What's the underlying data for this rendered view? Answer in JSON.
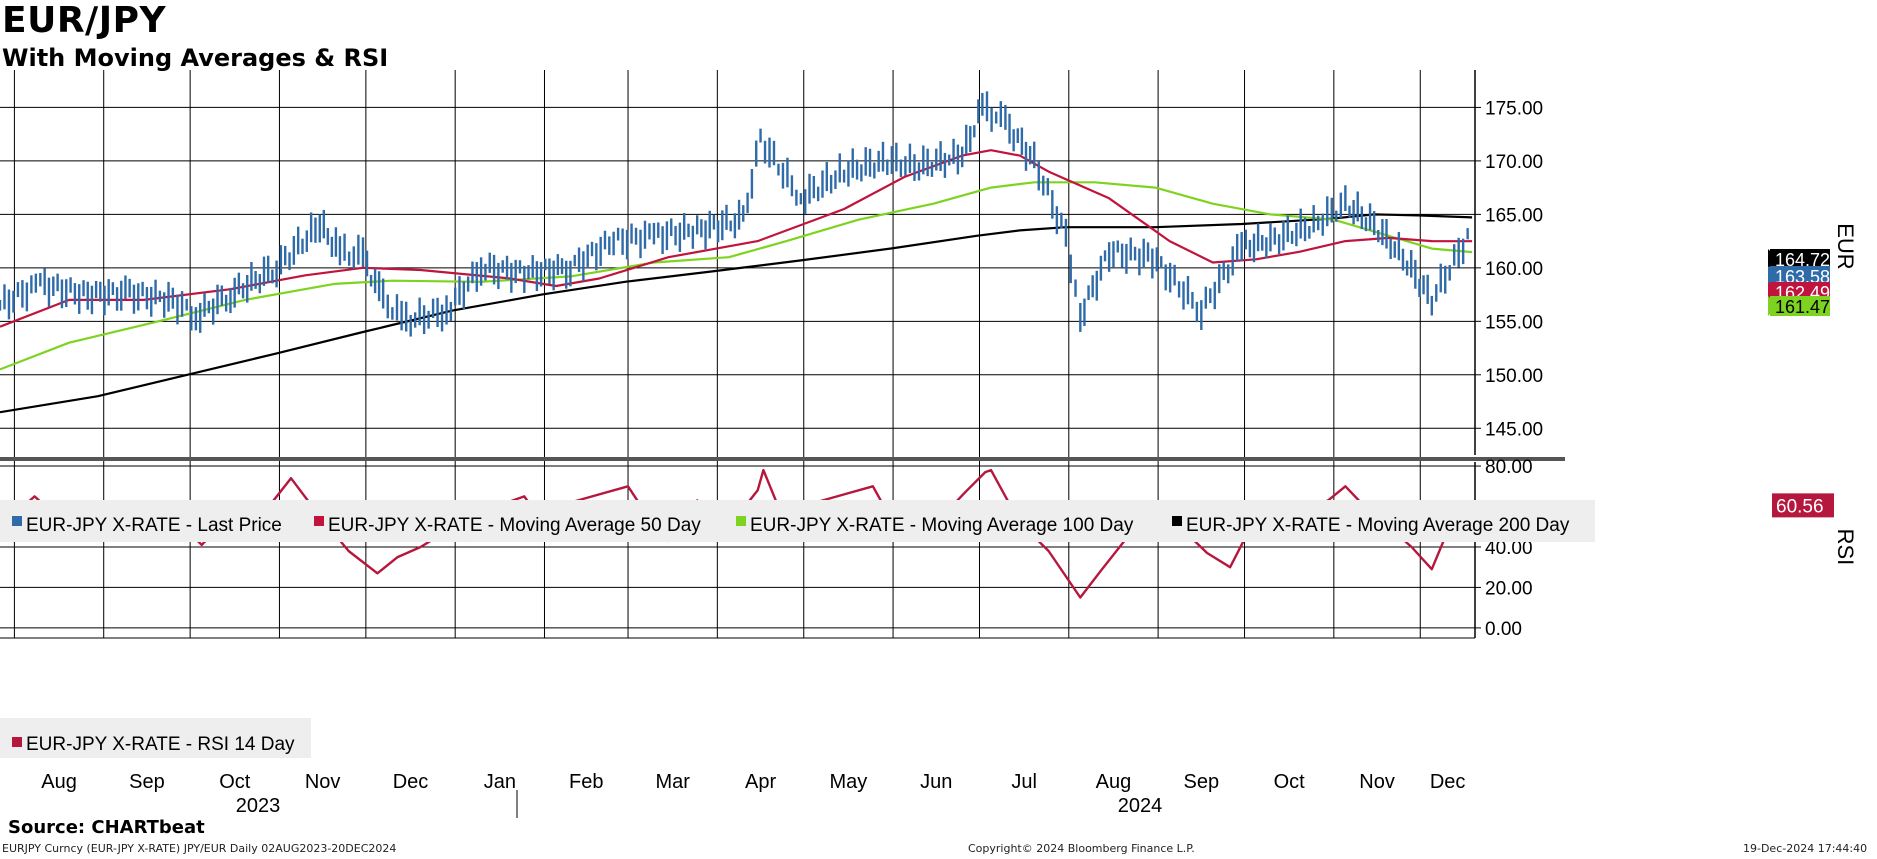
{
  "header": {
    "title": "EUR/JPY",
    "subtitle": "With Moving Averages & RSI"
  },
  "footer": {
    "source": "Source: CHARTbeat",
    "ticker_info": "EURJPY Curncy (EUR-JPY X-RATE) JPY/EUR  Daily 02AUG2023-20DEC2024",
    "copyright": "Copyright© 2024 Bloomberg Finance L.P.",
    "timestamp": "19-Dec-2024 17:44:40"
  },
  "colors": {
    "price": "#2f6ba8",
    "ma50": "#c0143c",
    "ma100": "#7ed321",
    "ma200": "#000000",
    "rsi": "#b5173d",
    "grid": "#000000"
  },
  "chart_data": [
    {
      "type": "line",
      "name": "price-panel",
      "ylabel": "EUR",
      "yticks": [
        "145.00",
        "150.00",
        "155.00",
        "160.00",
        "165.00",
        "170.00",
        "175.00"
      ],
      "ylim": [
        142.5,
        178.5
      ],
      "x_range": [
        "2023-07-27",
        "2024-12-20"
      ],
      "month_labels": [
        "Aug",
        "Sep",
        "Oct",
        "Nov",
        "Dec",
        "Jan",
        "Feb",
        "Mar",
        "Apr",
        "May",
        "Jun",
        "Jul",
        "Aug",
        "Sep",
        "Oct",
        "Nov",
        "Dec"
      ],
      "month_dates": [
        "2023-08-01",
        "2023-09-01",
        "2023-10-01",
        "2023-11-01",
        "2023-12-01",
        "2024-01-01",
        "2024-02-01",
        "2024-03-01",
        "2024-04-01",
        "2024-05-01",
        "2024-06-01",
        "2024-07-01",
        "2024-08-01",
        "2024-09-01",
        "2024-10-01",
        "2024-11-01",
        "2024-12-01"
      ],
      "year_labels": [
        "2023",
        "2024"
      ],
      "legend": [
        "EUR-JPY X-RATE - Last Price",
        "EUR-JPY X-RATE - Moving Average 50 Day",
        "EUR-JPY X-RATE - Moving Average 100 Day",
        "EUR-JPY X-RATE - Moving Average 200 Day"
      ],
      "last_value_tags": [
        "164.72",
        "163.58",
        "162.49",
        "161.47"
      ],
      "series": [
        {
          "name": "EUR-JPY X-RATE - Last Price",
          "x": [
            "2023-07-27",
            "2023-08-10",
            "2023-08-25",
            "2023-09-10",
            "2023-09-25",
            "2023-10-03",
            "2023-10-15",
            "2023-10-31",
            "2023-11-15",
            "2023-11-22",
            "2023-11-30",
            "2023-12-07",
            "2023-12-15",
            "2023-12-29",
            "2024-01-10",
            "2024-01-25",
            "2024-02-10",
            "2024-02-25",
            "2024-03-10",
            "2024-03-25",
            "2024-04-10",
            "2024-04-16",
            "2024-04-30",
            "2024-05-15",
            "2024-05-30",
            "2024-06-10",
            "2024-06-25",
            "2024-07-02",
            "2024-07-10",
            "2024-07-20",
            "2024-07-31",
            "2024-08-05",
            "2024-08-15",
            "2024-08-30",
            "2024-09-16",
            "2024-09-30",
            "2024-10-10",
            "2024-10-25",
            "2024-11-05",
            "2024-11-15",
            "2024-11-25",
            "2024-12-05",
            "2024-12-19"
          ],
          "values": [
            156.5,
            158.5,
            157.5,
            157.6,
            157.0,
            155.5,
            157.5,
            160.0,
            164.0,
            161.5,
            161.0,
            157.0,
            155.0,
            156.0,
            160.0,
            159.5,
            160.0,
            162.5,
            163.0,
            163.5,
            164.5,
            172.0,
            166.5,
            169.0,
            170.0,
            169.5,
            170.5,
            175.0,
            173.5,
            170.0,
            163.0,
            155.5,
            161.5,
            161.0,
            156.0,
            162.0,
            162.5,
            164.0,
            166.0,
            164.0,
            161.0,
            157.0,
            163.58
          ]
        },
        {
          "name": "EUR-JPY X-RATE - Moving Average 50 Day",
          "x": [
            "2023-07-27",
            "2023-08-20",
            "2023-09-15",
            "2023-10-15",
            "2023-11-10",
            "2023-11-30",
            "2023-12-20",
            "2024-01-20",
            "2024-02-05",
            "2024-02-20",
            "2024-03-15",
            "2024-04-15",
            "2024-05-15",
            "2024-06-05",
            "2024-06-25",
            "2024-07-05",
            "2024-07-15",
            "2024-07-25",
            "2024-08-15",
            "2024-09-05",
            "2024-09-20",
            "2024-10-05",
            "2024-10-20",
            "2024-11-05",
            "2024-11-20",
            "2024-12-05",
            "2024-12-19"
          ],
          "values": [
            154.5,
            157.0,
            157.0,
            158.0,
            159.3,
            160.0,
            159.8,
            159.0,
            158.3,
            159.0,
            161.0,
            162.5,
            165.5,
            168.5,
            170.5,
            171.0,
            170.5,
            169.0,
            166.5,
            162.5,
            160.5,
            160.8,
            161.5,
            162.5,
            162.8,
            162.5,
            162.49
          ]
        },
        {
          "name": "EUR-JPY X-RATE - Moving Average 100 Day",
          "x": [
            "2023-07-27",
            "2023-08-20",
            "2023-09-20",
            "2023-10-20",
            "2023-11-20",
            "2023-12-10",
            "2024-01-10",
            "2024-02-10",
            "2024-03-10",
            "2024-04-05",
            "2024-04-25",
            "2024-05-20",
            "2024-06-15",
            "2024-07-05",
            "2024-07-20",
            "2024-08-10",
            "2024-08-31",
            "2024-09-20",
            "2024-10-10",
            "2024-11-01",
            "2024-11-20",
            "2024-12-05",
            "2024-12-19"
          ],
          "values": [
            150.5,
            153.0,
            155.0,
            157.0,
            158.5,
            158.8,
            158.7,
            159.2,
            160.5,
            161.0,
            162.5,
            164.5,
            166.0,
            167.5,
            168.0,
            168.0,
            167.5,
            166.0,
            165.0,
            164.5,
            163.0,
            161.8,
            161.47
          ]
        },
        {
          "name": "EUR-JPY X-RATE - Moving Average 200 Day",
          "x": [
            "2023-07-27",
            "2023-08-30",
            "2023-09-30",
            "2023-10-31",
            "2023-11-30",
            "2023-12-31",
            "2024-01-31",
            "2024-02-29",
            "2024-03-31",
            "2024-04-30",
            "2024-05-31",
            "2024-06-30",
            "2024-07-15",
            "2024-07-31",
            "2024-08-31",
            "2024-09-30",
            "2024-10-31",
            "2024-11-15",
            "2024-11-30",
            "2024-12-19"
          ],
          "values": [
            146.5,
            148.0,
            150.0,
            152.0,
            154.0,
            156.0,
            157.5,
            158.7,
            159.7,
            160.7,
            161.8,
            163.0,
            163.5,
            163.8,
            163.8,
            164.1,
            164.6,
            165.0,
            164.9,
            164.72
          ]
        }
      ]
    },
    {
      "type": "line",
      "name": "rsi-panel",
      "ylabel": "RSI",
      "yticks": [
        "0.00",
        "20.00",
        "40.00",
        "60.00",
        "80.00"
      ],
      "ylim": [
        -5,
        82
      ],
      "last_value_tag": "60.56",
      "legend": [
        "EUR-JPY X-RATE - RSI 14 Day"
      ],
      "series": [
        {
          "name": "EUR-JPY X-RATE - RSI 14 Day",
          "x": [
            "2023-07-27",
            "2023-08-08",
            "2023-08-15",
            "2023-08-20",
            "2023-08-30",
            "2023-09-10",
            "2023-09-20",
            "2023-09-30",
            "2023-10-05",
            "2023-10-15",
            "2023-10-25",
            "2023-11-05",
            "2023-11-14",
            "2023-11-25",
            "2023-12-05",
            "2023-12-12",
            "2023-12-20",
            "2023-12-28",
            "2024-01-05",
            "2024-01-15",
            "2024-01-25",
            "2024-02-01",
            "2024-02-10",
            "2024-02-20",
            "2024-03-01",
            "2024-03-07",
            "2024-03-15",
            "2024-03-25",
            "2024-04-05",
            "2024-04-15",
            "2024-04-17",
            "2024-04-25",
            "2024-05-05",
            "2024-05-15",
            "2024-05-25",
            "2024-06-01",
            "2024-06-10",
            "2024-06-20",
            "2024-06-26",
            "2024-07-03",
            "2024-07-05",
            "2024-07-15",
            "2024-07-25",
            "2024-08-05",
            "2024-08-12",
            "2024-08-22",
            "2024-09-01",
            "2024-09-10",
            "2024-09-18",
            "2024-09-26",
            "2024-10-05",
            "2024-10-15",
            "2024-10-22",
            "2024-10-30",
            "2024-11-05",
            "2024-11-15",
            "2024-11-20",
            "2024-11-28",
            "2024-12-05",
            "2024-12-12",
            "2024-12-19"
          ],
          "values": [
            50,
            65,
            56,
            62,
            52,
            51,
            50,
            48,
            41,
            56,
            54,
            74,
            57,
            38,
            27,
            35,
            40,
            47,
            43,
            60,
            65,
            51,
            62,
            66,
            70,
            57,
            43,
            63,
            50,
            68,
            78,
            50,
            62,
            66,
            70,
            52,
            52,
            58,
            67,
            77,
            78,
            52,
            38,
            15,
            28,
            46,
            45,
            48,
            37,
            30,
            55,
            60,
            58,
            63,
            70,
            55,
            50,
            40,
            29,
            53,
            60.56
          ]
        }
      ]
    }
  ]
}
